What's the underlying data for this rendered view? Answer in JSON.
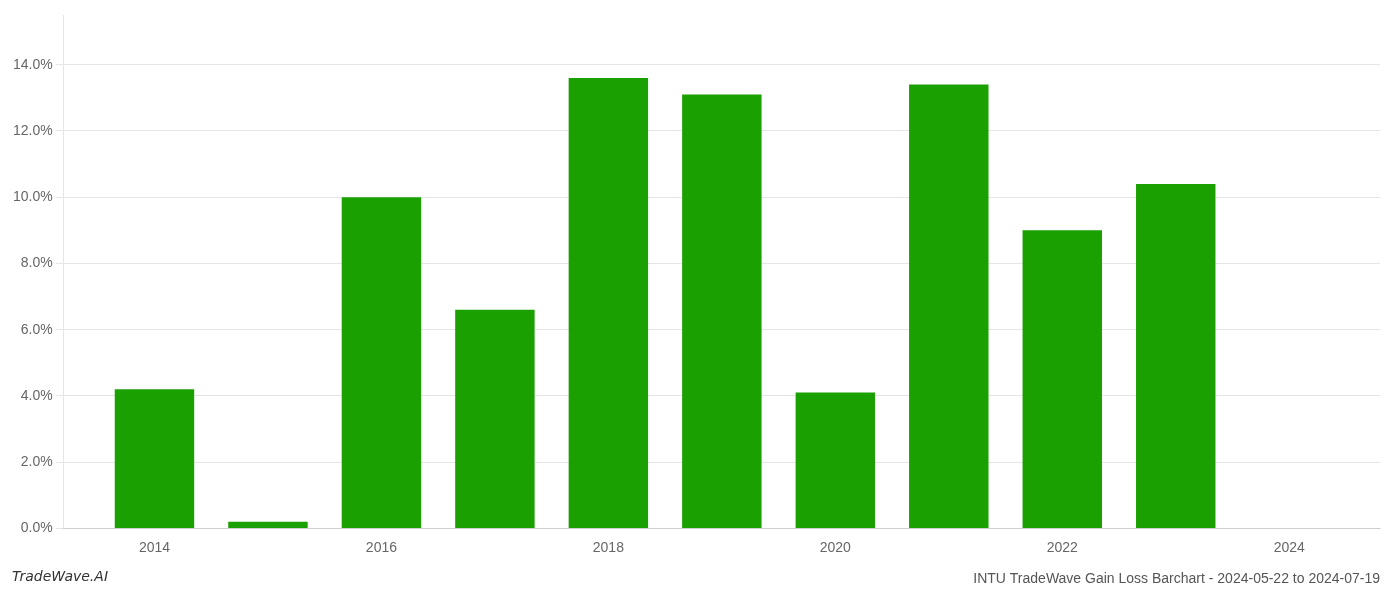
{
  "chart_data": {
    "type": "bar",
    "title": "INTU TradeWave Gain Loss Barchart - 2024-05-22 to 2024-07-19",
    "annotations": [
      "TradeWave.AI"
    ],
    "x": [
      2014,
      2015,
      2016,
      2017,
      2018,
      2019,
      2020,
      2021,
      2022,
      2023
    ],
    "values": [
      0.042,
      0.002,
      0.1,
      0.066,
      0.136,
      0.131,
      0.041,
      0.134,
      0.09,
      0.104
    ],
    "color": "#1aa000",
    "xlim": [
      2013.2,
      2024.8
    ],
    "xticks": [
      2014,
      2016,
      2018,
      2020,
      2022,
      2024
    ],
    "ylim": [
      0,
      0.155
    ],
    "yticks": [
      {
        "value": 0.0,
        "label": "0.0%"
      },
      {
        "value": 0.02,
        "label": "2.0%"
      },
      {
        "value": 0.04,
        "label": "4.0%"
      },
      {
        "value": 0.06,
        "label": "6.0%"
      },
      {
        "value": 0.08,
        "label": "8.0%"
      },
      {
        "value": 0.1,
        "label": "10.0%"
      },
      {
        "value": 0.12,
        "label": "12.0%"
      },
      {
        "value": 0.14,
        "label": "14.0%"
      }
    ],
    "grid": true
  }
}
